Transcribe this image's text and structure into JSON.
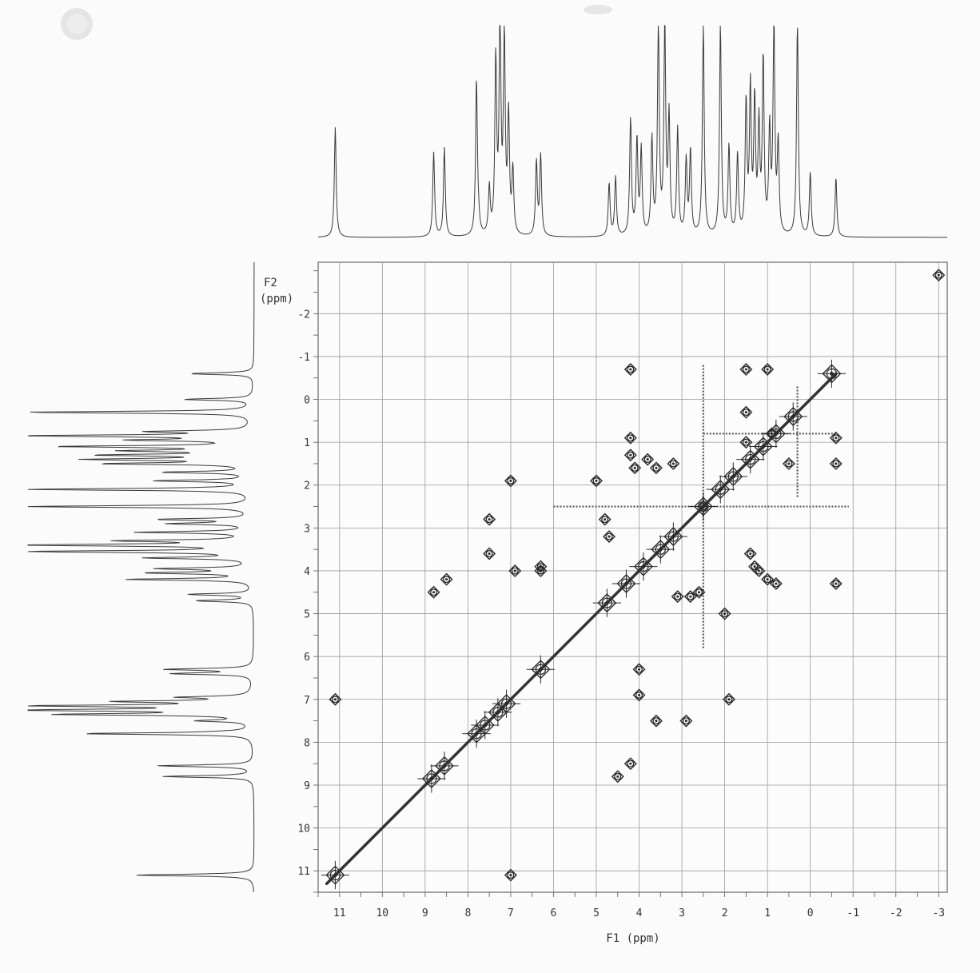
{
  "chart_data": {
    "type": "scatter",
    "subtype": "2D NMR COSY contour plot",
    "title": "",
    "xlabel": "F1 (ppm)",
    "ylabel": "F2 (ppm)",
    "xlim": [
      11.5,
      -3.2
    ],
    "ylim": [
      -3.2,
      11.5
    ],
    "x_axis_reversed": true,
    "grid": true,
    "legend": "none",
    "x_ticks": [
      "11",
      "10",
      "9",
      "8",
      "7",
      "6",
      "5",
      "4",
      "3",
      "2",
      "1",
      "0",
      "-1",
      "-2",
      "-3"
    ],
    "y_ticks": [
      "-2",
      "-1",
      "0",
      "1",
      "2",
      "3",
      "4",
      "5",
      "6",
      "7",
      "8",
      "9",
      "10",
      "11"
    ],
    "spectrum_1d_peaks": [
      {
        "ppm": 11.1,
        "height": 0.52
      },
      {
        "ppm": 8.8,
        "height": 0.4
      },
      {
        "ppm": 8.55,
        "height": 0.42
      },
      {
        "ppm": 7.8,
        "height": 0.74
      },
      {
        "ppm": 7.75,
        "height": 0.05
      },
      {
        "ppm": 7.5,
        "height": 0.22
      },
      {
        "ppm": 7.35,
        "height": 0.82
      },
      {
        "ppm": 7.25,
        "height": 1.0
      },
      {
        "ppm": 7.15,
        "height": 0.92
      },
      {
        "ppm": 7.05,
        "height": 0.55
      },
      {
        "ppm": 6.95,
        "height": 0.3
      },
      {
        "ppm": 6.4,
        "height": 0.35
      },
      {
        "ppm": 6.3,
        "height": 0.38
      },
      {
        "ppm": 4.7,
        "height": 0.25
      },
      {
        "ppm": 4.55,
        "height": 0.28
      },
      {
        "ppm": 4.2,
        "height": 0.55
      },
      {
        "ppm": 4.05,
        "height": 0.45
      },
      {
        "ppm": 3.95,
        "height": 0.4
      },
      {
        "ppm": 3.7,
        "height": 0.45
      },
      {
        "ppm": 3.55,
        "height": 1.0
      },
      {
        "ppm": 3.4,
        "height": 1.0
      },
      {
        "ppm": 3.3,
        "height": 0.55
      },
      {
        "ppm": 3.1,
        "height": 0.5
      },
      {
        "ppm": 2.9,
        "height": 0.35
      },
      {
        "ppm": 2.8,
        "height": 0.4
      },
      {
        "ppm": 2.5,
        "height": 1.0
      },
      {
        "ppm": 2.1,
        "height": 1.0
      },
      {
        "ppm": 1.9,
        "height": 0.42
      },
      {
        "ppm": 1.7,
        "height": 0.38
      },
      {
        "ppm": 1.5,
        "height": 0.62
      },
      {
        "ppm": 1.4,
        "height": 0.68
      },
      {
        "ppm": 1.3,
        "height": 0.62
      },
      {
        "ppm": 1.2,
        "height": 0.5
      },
      {
        "ppm": 1.1,
        "height": 0.82
      },
      {
        "ppm": 0.95,
        "height": 0.48
      },
      {
        "ppm": 0.85,
        "height": 1.0
      },
      {
        "ppm": 0.75,
        "height": 0.42
      },
      {
        "ppm": 0.3,
        "height": 1.0
      },
      {
        "ppm": 0.0,
        "height": 0.3
      },
      {
        "ppm": -0.6,
        "height": 0.28
      }
    ],
    "diagonal_range": [
      11.3,
      -0.6
    ],
    "diagonal_peaks": [
      {
        "x": 11.1,
        "y": 11.1
      },
      {
        "x": 8.85,
        "y": 8.85
      },
      {
        "x": 8.55,
        "y": 8.55
      },
      {
        "x": 7.8,
        "y": 7.8
      },
      {
        "x": 7.6,
        "y": 7.6
      },
      {
        "x": 7.3,
        "y": 7.3
      },
      {
        "x": 7.1,
        "y": 7.1
      },
      {
        "x": 6.3,
        "y": 6.3
      },
      {
        "x": 4.75,
        "y": 4.75
      },
      {
        "x": 4.3,
        "y": 4.3
      },
      {
        "x": 3.9,
        "y": 3.9
      },
      {
        "x": 3.5,
        "y": 3.5
      },
      {
        "x": 3.2,
        "y": 3.2
      },
      {
        "x": 2.5,
        "y": 2.5
      },
      {
        "x": 2.1,
        "y": 2.1
      },
      {
        "x": 1.8,
        "y": 1.8
      },
      {
        "x": 1.4,
        "y": 1.4
      },
      {
        "x": 1.1,
        "y": 1.1
      },
      {
        "x": 0.8,
        "y": 0.8
      },
      {
        "x": 0.4,
        "y": 0.4
      },
      {
        "x": -0.5,
        "y": -0.6
      }
    ],
    "cross_peaks": [
      {
        "x": 8.8,
        "y": 4.5
      },
      {
        "x": 8.5,
        "y": 4.2
      },
      {
        "x": 7.5,
        "y": 2.8
      },
      {
        "x": 7.5,
        "y": 3.6
      },
      {
        "x": 7.0,
        "y": 1.9
      },
      {
        "x": 6.9,
        "y": 4.0
      },
      {
        "x": 6.3,
        "y": 3.9
      },
      {
        "x": 6.3,
        "y": 4.0
      },
      {
        "x": 5.0,
        "y": 1.9
      },
      {
        "x": 4.8,
        "y": 2.8
      },
      {
        "x": 4.7,
        "y": 3.2
      },
      {
        "x": 4.2,
        "y": 0.9
      },
      {
        "x": 4.2,
        "y": 1.3
      },
      {
        "x": 4.1,
        "y": 1.6
      },
      {
        "x": 3.8,
        "y": 1.4
      },
      {
        "x": 3.6,
        "y": 1.6
      },
      {
        "x": 4.2,
        "y": -0.7
      },
      {
        "x": 3.2,
        "y": 1.5
      },
      {
        "x": 4.5,
        "y": 8.8
      },
      {
        "x": 4.2,
        "y": 8.5
      },
      {
        "x": 4.0,
        "y": 6.3
      },
      {
        "x": 4.0,
        "y": 6.9
      },
      {
        "x": 3.6,
        "y": 7.5
      },
      {
        "x": 2.9,
        "y": 7.5
      },
      {
        "x": 2.8,
        "y": 4.6
      },
      {
        "x": 2.6,
        "y": 4.5
      },
      {
        "x": 3.1,
        "y": 4.6
      },
      {
        "x": 2.5,
        "y": 2.5
      },
      {
        "x": 2.0,
        "y": 5.0
      },
      {
        "x": 1.9,
        "y": 7.0
      },
      {
        "x": 1.5,
        "y": -0.7
      },
      {
        "x": 1.0,
        "y": -0.7
      },
      {
        "x": 1.5,
        "y": 0.3
      },
      {
        "x": 1.5,
        "y": 1.0
      },
      {
        "x": 1.4,
        "y": 3.6
      },
      {
        "x": 1.3,
        "y": 3.9
      },
      {
        "x": 1.2,
        "y": 4.0
      },
      {
        "x": 1.0,
        "y": 4.2
      },
      {
        "x": 0.8,
        "y": 4.3
      },
      {
        "x": 0.9,
        "y": 0.8
      },
      {
        "x": 0.5,
        "y": 1.5
      },
      {
        "x": -0.6,
        "y": 0.9
      },
      {
        "x": -0.6,
        "y": 1.5
      },
      {
        "x": -0.6,
        "y": 4.3
      },
      {
        "x": -3.0,
        "y": -2.9
      },
      {
        "x": 7.0,
        "y": 11.1
      },
      {
        "x": 11.1,
        "y": 7.0
      }
    ],
    "streaks": [
      {
        "orientation": "vertical",
        "ppm": 2.5,
        "range": [
          -0.8,
          5.8
        ]
      },
      {
        "orientation": "horizontal",
        "ppm": 2.5,
        "range": [
          6.0,
          -0.9
        ]
      },
      {
        "orientation": "horizontal",
        "ppm": 0.8,
        "range": [
          2.5,
          -0.6
        ]
      },
      {
        "orientation": "vertical",
        "ppm": 0.3,
        "range": [
          -0.3,
          2.3
        ]
      }
    ]
  }
}
